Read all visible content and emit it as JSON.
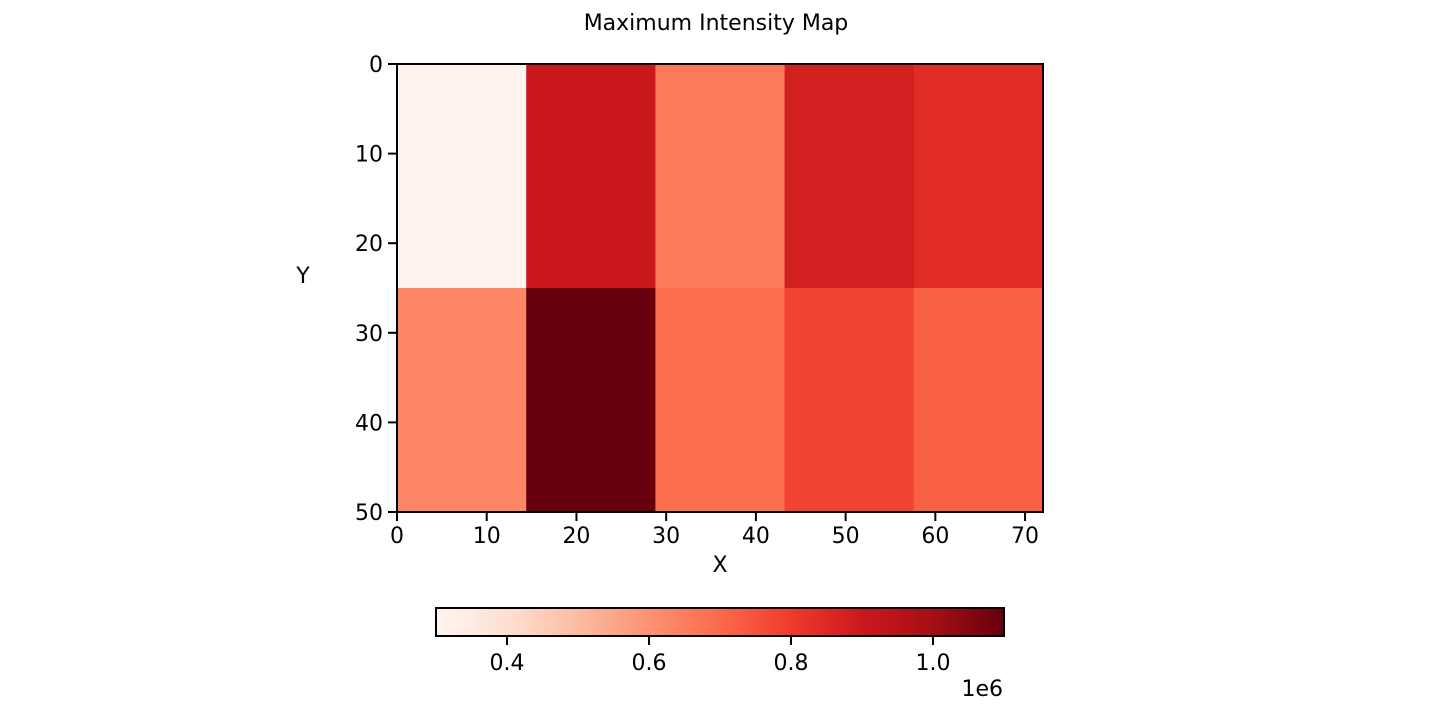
{
  "chart_data": {
    "type": "heatmap",
    "title": "Maximum Intensity Map",
    "xlabel": "X",
    "ylabel": "Y",
    "colormap": "Reds",
    "x_edges": [
      0,
      14.4,
      28.8,
      43.2,
      57.6,
      72
    ],
    "y_edges": [
      0,
      25,
      50
    ],
    "xlim": [
      0,
      72
    ],
    "ylim": [
      50,
      0
    ],
    "xticks": [
      0,
      10,
      20,
      30,
      40,
      50,
      60,
      70
    ],
    "yticks": [
      0,
      10,
      20,
      30,
      40,
      50
    ],
    "values": [
      [
        310000,
        900000,
        660000,
        880000,
        840000
      ],
      [
        630000,
        1100000,
        690000,
        780000,
        720000
      ]
    ],
    "colorbar": {
      "min": 300000,
      "max": 1100000,
      "orientation": "horizontal",
      "ticks": [
        400000,
        600000,
        800000,
        1000000
      ],
      "tick_labels": [
        "0.4",
        "0.6",
        "0.8",
        "1.0"
      ],
      "offset_label": "1e6"
    }
  }
}
